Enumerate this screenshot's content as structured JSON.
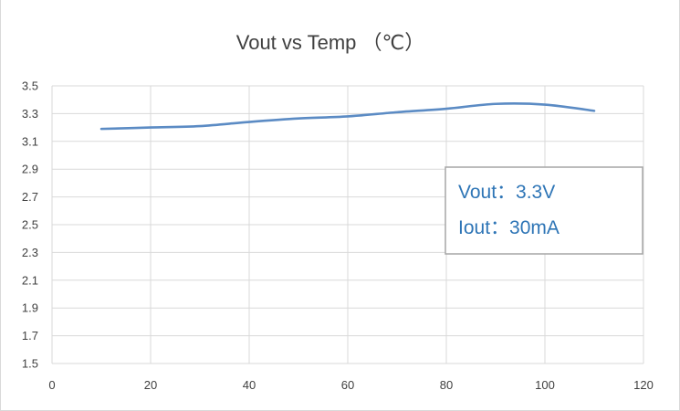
{
  "chart_data": {
    "type": "line",
    "title": "Vout vs Temp （℃）",
    "xlabel": "",
    "ylabel": "",
    "xlim": [
      0,
      120
    ],
    "ylim": [
      1.5,
      3.5
    ],
    "xticks": [
      0,
      20,
      40,
      60,
      80,
      100,
      120
    ],
    "yticks": [
      "1.5",
      "1.7",
      "1.9",
      "2.1",
      "2.3",
      "2.5",
      "2.7",
      "2.9",
      "3.1",
      "3.3",
      "3.5"
    ],
    "grid": true,
    "legend": "none",
    "series": [
      {
        "color": "#5b8bc4",
        "smooth": true,
        "x": [
          10,
          20,
          30,
          40,
          50,
          60,
          70,
          80,
          90,
          100,
          110
        ],
        "y": [
          3.19,
          3.2,
          3.21,
          3.24,
          3.265,
          3.28,
          3.31,
          3.335,
          3.37,
          3.365,
          3.32
        ]
      }
    ],
    "annotations": {
      "lines": [
        "Vout：3.3V",
        "Iout：30mA"
      ]
    }
  }
}
